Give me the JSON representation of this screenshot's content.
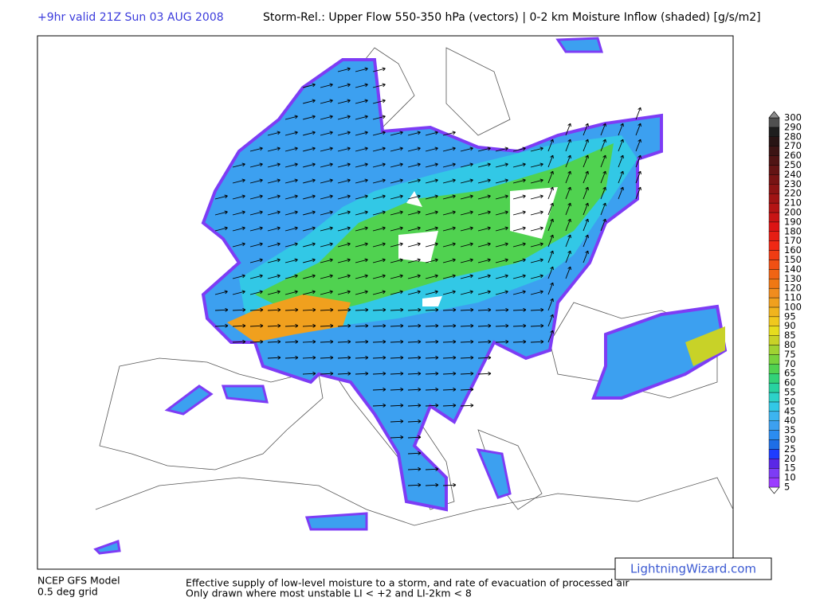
{
  "header": {
    "valid": "+9hr valid 21Z Sun 03 AUG 2008",
    "title": "Storm-Rel.: Upper Flow 550-350 hPa (vectors) | 0-2 km Moisture Inflow (shaded) [g/s/m2]"
  },
  "colorbar": {
    "levels": [
      {
        "value": 5,
        "color": "#9b3cff"
      },
      {
        "value": 10,
        "color": "#7d3cf5"
      },
      {
        "value": 15,
        "color": "#5a28e6"
      },
      {
        "value": 20,
        "color": "#1e3cff"
      },
      {
        "value": 25,
        "color": "#1e6ee6"
      },
      {
        "value": 30,
        "color": "#2b8cf0"
      },
      {
        "value": 35,
        "color": "#3ca0f0"
      },
      {
        "value": 40,
        "color": "#3cb4f0"
      },
      {
        "value": 45,
        "color": "#32c8e6"
      },
      {
        "value": 50,
        "color": "#2dd2c8"
      },
      {
        "value": 55,
        "color": "#28d2a0"
      },
      {
        "value": 60,
        "color": "#32d278"
      },
      {
        "value": 65,
        "color": "#50d250"
      },
      {
        "value": 70,
        "color": "#78d23c"
      },
      {
        "value": 75,
        "color": "#a0d232"
      },
      {
        "value": 80,
        "color": "#c8d228"
      },
      {
        "value": 85,
        "color": "#e6dc1e"
      },
      {
        "value": 90,
        "color": "#f0c81e"
      },
      {
        "value": 95,
        "color": "#f0b41e"
      },
      {
        "value": 100,
        "color": "#f0a01e"
      },
      {
        "value": 110,
        "color": "#f08c1e"
      },
      {
        "value": 120,
        "color": "#f07814"
      },
      {
        "value": 130,
        "color": "#f06414"
      },
      {
        "value": 140,
        "color": "#f05014"
      },
      {
        "value": 150,
        "color": "#f03c14"
      },
      {
        "value": 160,
        "color": "#f02814"
      },
      {
        "value": 170,
        "color": "#e61e14"
      },
      {
        "value": 180,
        "color": "#dc1414"
      },
      {
        "value": 190,
        "color": "#c81414"
      },
      {
        "value": 200,
        "color": "#b41414"
      },
      {
        "value": 210,
        "color": "#a01414"
      },
      {
        "value": 220,
        "color": "#8c1414"
      },
      {
        "value": 230,
        "color": "#781414"
      },
      {
        "value": 240,
        "color": "#641414"
      },
      {
        "value": 250,
        "color": "#501414"
      },
      {
        "value": 260,
        "color": "#3c1414"
      },
      {
        "value": 270,
        "color": "#281414"
      },
      {
        "value": 280,
        "color": "#1e1e1e"
      },
      {
        "value": 290,
        "color": "#505050"
      },
      {
        "value": 300,
        "color": "#8c8c8c"
      }
    ]
  },
  "footer": {
    "model": "NCEP GFS Model",
    "grid": "0.5 deg grid",
    "description": "Effective supply of low-level moisture to a storm, and rate of evacuation of processed air",
    "condition": "Only drawn where most unstable LI < +2 and LI-2km < 8",
    "credit": "LightningWizard.com"
  }
}
